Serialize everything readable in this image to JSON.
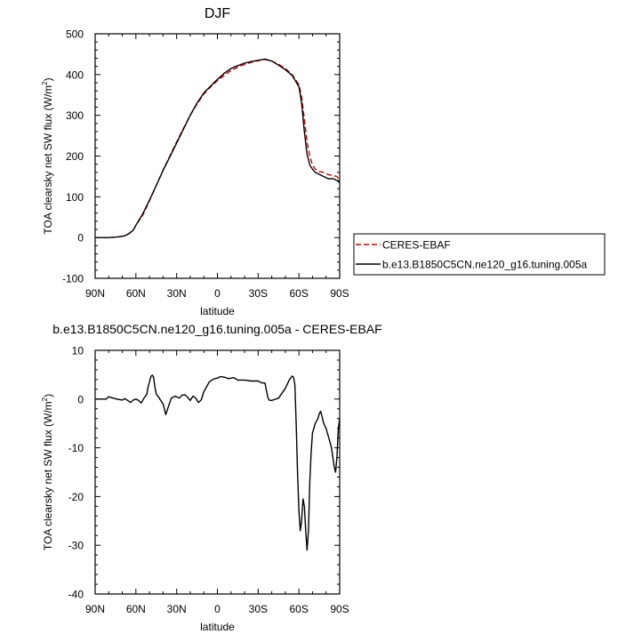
{
  "chart_data": [
    {
      "type": "line",
      "title": "DJF",
      "xlabel": "latitude",
      "ylabel_main": "TOA clearsky net SW flux (W/m",
      "ylabel_sup": "2",
      "ylabel_close": ")",
      "xlim": [
        90,
        -90
      ],
      "ylim": [
        -100,
        500
      ],
      "xticks": [
        90,
        60,
        30,
        0,
        -30,
        -60,
        -90
      ],
      "xtick_labels": [
        "90N",
        "60N",
        "30N",
        "0",
        "30S",
        "60S",
        "90S"
      ],
      "yticks": [
        -100,
        0,
        100,
        200,
        300,
        400,
        500
      ],
      "ytick_labels": [
        "-100",
        "0",
        "100",
        "200",
        "300",
        "400",
        "500"
      ],
      "legend_position": "right",
      "series": [
        {
          "name": "CERES-EBAF",
          "color": "#cc0000",
          "dash": "dashed",
          "x": [
            90,
            80,
            75,
            70,
            67,
            65,
            62,
            60,
            55,
            50,
            45,
            40,
            35,
            30,
            25,
            20,
            15,
            10,
            5,
            0,
            -5,
            -10,
            -15,
            -20,
            -25,
            -30,
            -35,
            -40,
            -45,
            -50,
            -55,
            -60,
            -62,
            -64,
            -66,
            -68,
            -70,
            -72,
            -75,
            -78,
            -80,
            -82,
            -85,
            -88,
            -90
          ],
          "y": [
            0,
            0,
            1,
            3,
            6,
            10,
            18,
            30,
            55,
            90,
            128,
            165,
            200,
            235,
            268,
            300,
            328,
            352,
            370,
            385,
            398,
            410,
            418,
            425,
            430,
            434,
            437,
            433,
            425,
            415,
            400,
            375,
            345,
            290,
            235,
            200,
            178,
            168,
            162,
            160,
            157,
            154,
            152,
            150,
            140
          ]
        },
        {
          "name": "b.e13.B1850C5CN.ne120_g16.tuning.005a",
          "color": "#000000",
          "dash": "solid",
          "x": [
            90,
            80,
            75,
            70,
            67,
            65,
            62,
            60,
            55,
            50,
            45,
            40,
            35,
            30,
            25,
            20,
            15,
            10,
            5,
            0,
            -5,
            -10,
            -15,
            -20,
            -25,
            -30,
            -35,
            -40,
            -45,
            -50,
            -55,
            -60,
            -62,
            -64,
            -66,
            -68,
            -70,
            -72,
            -75,
            -78,
            -80,
            -82,
            -85,
            -88,
            -90
          ],
          "y": [
            0,
            0,
            1,
            3,
            6,
            10,
            18,
            30,
            58,
            92,
            128,
            165,
            198,
            232,
            266,
            300,
            330,
            355,
            372,
            388,
            403,
            415,
            422,
            428,
            432,
            435,
            438,
            433,
            423,
            412,
            398,
            370,
            330,
            260,
            205,
            178,
            168,
            160,
            155,
            150,
            147,
            144,
            145,
            140,
            135
          ]
        }
      ]
    },
    {
      "type": "line",
      "title": "b.e13.B1850C5CN.ne120_g16.tuning.005a - CERES-EBAF",
      "xlabel": "latitude",
      "ylabel_main": "TOA clearsky net SW flux (W/m",
      "ylabel_sup": "2",
      "ylabel_close": ")",
      "xlim": [
        90,
        -90
      ],
      "ylim": [
        -40,
        10
      ],
      "xticks": [
        90,
        60,
        30,
        0,
        -30,
        -60,
        -90
      ],
      "xtick_labels": [
        "90N",
        "60N",
        "30N",
        "0",
        "30S",
        "60S",
        "90S"
      ],
      "yticks": [
        -40,
        -30,
        -20,
        -10,
        0,
        10
      ],
      "ytick_labels": [
        "-40",
        "-30",
        "-20",
        "-10",
        "0",
        "10"
      ],
      "series": [
        {
          "name": "",
          "color": "#000000",
          "dash": "solid",
          "x": [
            90,
            82,
            80,
            78,
            74,
            70,
            68,
            66,
            64,
            62,
            60,
            58,
            56,
            54,
            52,
            51,
            50,
            49,
            48,
            47,
            46,
            45,
            43,
            41,
            40,
            39,
            38,
            36,
            34,
            31,
            28,
            26,
            24,
            22,
            20,
            18,
            16,
            14,
            12,
            11,
            10,
            8,
            6,
            4,
            2,
            0,
            -2,
            -5,
            -8,
            -12,
            -15,
            -20,
            -25,
            -30,
            -33,
            -35,
            -37,
            -38,
            -40,
            -45,
            -50,
            -53,
            -55,
            -56,
            -57,
            -58,
            -59,
            -60,
            -61,
            -62,
            -63,
            -64,
            -65,
            -66,
            -67,
            -68,
            -69,
            -70,
            -72,
            -74,
            -75,
            -76,
            -77,
            -78,
            -79,
            -80,
            -82,
            -84,
            -85,
            -86,
            -87,
            -88,
            -89,
            -90
          ],
          "y": [
            0,
            0,
            0.5,
            0.3,
            0,
            -0.2,
            0.1,
            -0.3,
            -0.7,
            -0.2,
            0,
            -0.3,
            -0.8,
            0.2,
            1.0,
            2.5,
            3.5,
            4.6,
            4.9,
            4.5,
            2.5,
            1.0,
            0.3,
            -0.6,
            -1.0,
            -2.0,
            -3.2,
            -1.5,
            0.2,
            0.6,
            0.2,
            0.8,
            0.9,
            0.4,
            -0.3,
            0.6,
            0.2,
            -0.7,
            -0.2,
            0.6,
            1.5,
            2.5,
            3.5,
            3.9,
            4.2,
            4.3,
            4.6,
            4.5,
            4.2,
            4.4,
            3.9,
            3.9,
            3.7,
            3.7,
            3.3,
            3.3,
            0.5,
            -0.2,
            -0.3,
            0.2,
            2.2,
            4.0,
            4.7,
            4.5,
            3.0,
            -5.0,
            -15.0,
            -23.0,
            -27.0,
            -25.0,
            -20.5,
            -22.0,
            -27.0,
            -31.0,
            -27.0,
            -17.0,
            -11.0,
            -7.0,
            -5.0,
            -4.0,
            -3.0,
            -2.5,
            -3.5,
            -4.8,
            -5.5,
            -6.0,
            -8.0,
            -10.0,
            -12.0,
            -14.0,
            -15.0,
            -12.0,
            -6.0,
            -4.0
          ]
        }
      ]
    }
  ]
}
